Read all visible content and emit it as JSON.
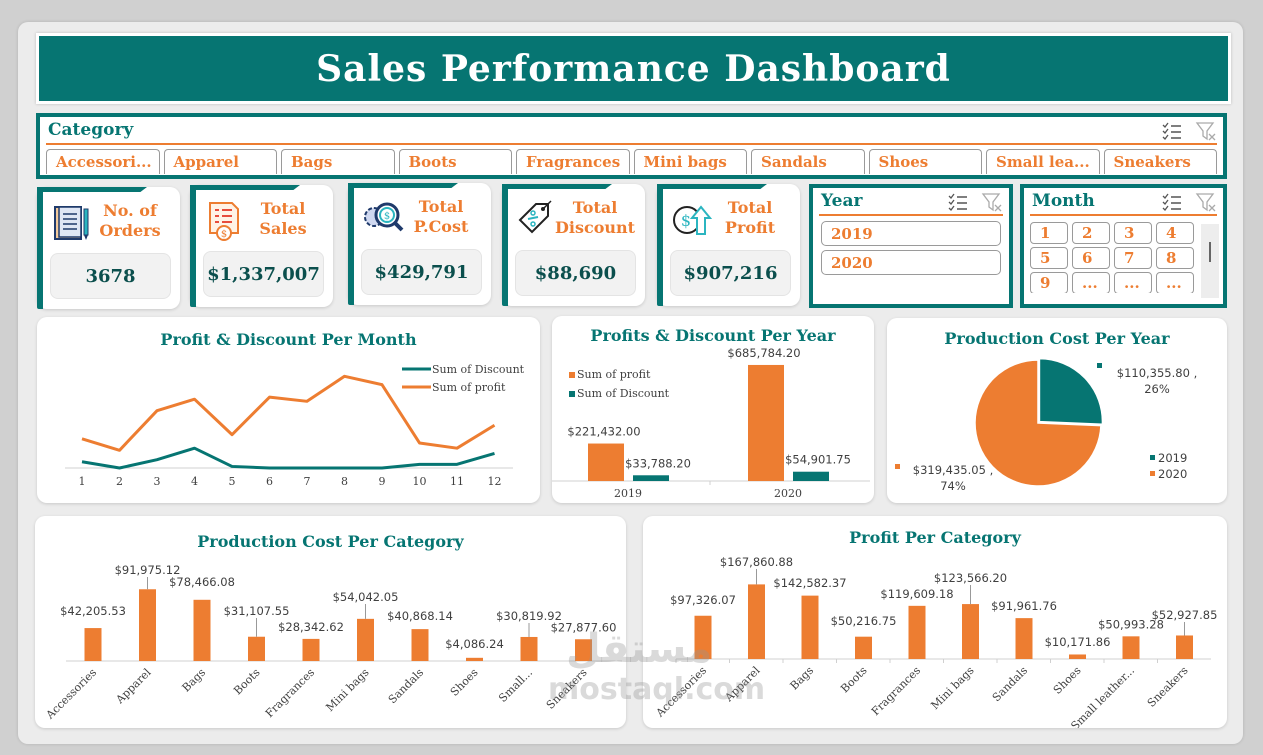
{
  "header": {
    "title": "Sales Performance Dashboard"
  },
  "colors": {
    "teal": "#067572",
    "orange": "#ed7d31",
    "dark_value": "#0b4f4d"
  },
  "category_slicer": {
    "title": "Category",
    "icons": [
      "multi-select-icon",
      "clear-filter-icon"
    ],
    "items": [
      "Accessori...",
      "Apparel",
      "Bags",
      "Boots",
      "Fragrances",
      "Mini bags",
      "Sandals",
      "Shoes",
      "Small lea...",
      "Sneakers"
    ]
  },
  "kpis": [
    {
      "icon": "notepad-icon",
      "label_line1": "No. of",
      "label_line2": "Orders",
      "value": "3678"
    },
    {
      "icon": "invoice-icon",
      "label_line1": "Total",
      "label_line2": "Sales",
      "value": "$1,337,007"
    },
    {
      "icon": "gear-magnifier-icon",
      "label_line1": "Total",
      "label_line2": "P.Cost",
      "value": "$429,791"
    },
    {
      "icon": "discount-tag-icon",
      "label_line1": "Total",
      "label_line2": "Discount",
      "value": "$88,690"
    },
    {
      "icon": "profit-arrow-icon",
      "label_line1": "Total",
      "label_line2": "Profit",
      "value": "$907,216"
    }
  ],
  "year_slicer": {
    "title": "Year",
    "items": [
      "2019",
      "2020"
    ]
  },
  "month_slicer": {
    "title": "Month",
    "items": [
      "1",
      "2",
      "3",
      "4",
      "5",
      "6",
      "7",
      "8",
      "9",
      "...",
      "...",
      "..."
    ]
  },
  "watermark": {
    "arabic": "مستقل",
    "latin": "mostaql.com"
  },
  "chart_data": [
    {
      "id": "profit_discount_month",
      "type": "line",
      "title": "Profit & Discount Per Month",
      "x": [
        "1",
        "2",
        "3",
        "4",
        "5",
        "6",
        "7",
        "8",
        "9",
        "10",
        "11",
        "12"
      ],
      "series": [
        {
          "name": "Sum of Discount",
          "color": "#067572",
          "values": [
            6000,
            0,
            8000,
            19000,
            1500,
            0,
            0,
            0,
            0,
            3500,
            3500,
            14000
          ]
        },
        {
          "name": "Sum of profit",
          "color": "#ed7d31",
          "values": [
            28000,
            17000,
            55000,
            66000,
            32000,
            68000,
            64000,
            88000,
            80000,
            24000,
            19000,
            41000
          ]
        }
      ],
      "ylim": [
        0,
        95000
      ],
      "legend": "top-right",
      "grid": false
    },
    {
      "id": "profit_discount_year",
      "type": "bar",
      "title": "Profits & Discount Per Year",
      "categories": [
        "2019",
        "2020"
      ],
      "series": [
        {
          "name": "Sum of profit",
          "color": "#ed7d31",
          "values": [
            221432.0
          ],
          "labels": [
            "$221,432.00",
            "$685,784.20"
          ]
        },
        {
          "name": "Sum of Discount",
          "color": "#067572",
          "values": [
            33788.2
          ],
          "labels": [
            "$33,788.20",
            "$54,901.75"
          ]
        }
      ],
      "values_2020": {
        "Sum of profit": 685784.2,
        "Sum of Discount": 54901.75
      },
      "ylim": [
        0,
        700000
      ],
      "legend": "top-left"
    },
    {
      "id": "production_cost_year",
      "type": "pie",
      "title": "Production Cost Per Year",
      "categories": [
        "2019",
        "2020"
      ],
      "values": [
        110355.8,
        319435.05
      ],
      "colors": [
        "#067572",
        "#ed7d31"
      ],
      "labels": [
        "$110,355.80 , 26%",
        "$319,435.05 , 74%"
      ],
      "percents": [
        "26%",
        "74%"
      ],
      "legend": "bottom-right"
    },
    {
      "id": "production_cost_category",
      "type": "bar",
      "title": "Production Cost Per Category",
      "categories": [
        "Accessories",
        "Apparel",
        "Bags",
        "Boots",
        "Fragrances",
        "Mini bags",
        "Sandals",
        "Shoes",
        "Small...",
        "Sneakers"
      ],
      "values": [
        42205.53,
        91975.12,
        78466.08,
        31107.55,
        28342.62,
        54042.05,
        40868.14,
        4086.24,
        30819.92,
        27877.6
      ],
      "labels": [
        "$42,205.53",
        "$91,975.12",
        "$78,466.08",
        "$31,107.55",
        "$28,342.62",
        "$54,042.05",
        "$40,868.14",
        "$4,086.24",
        "$30,819.92",
        "$27,877.60"
      ],
      "color": "#ed7d31",
      "ylim": [
        0,
        100000
      ]
    },
    {
      "id": "profit_category",
      "type": "bar",
      "title": "Profit Per Category",
      "categories": [
        "Accessories",
        "Apparel",
        "Bags",
        "Boots",
        "Fragrances",
        "Mini bags",
        "Sandals",
        "Shoes",
        "Small leather...",
        "Sneakers"
      ],
      "values": [
        97326.07,
        167860.88,
        142582.37,
        50216.75,
        119609.18,
        123566.2,
        91961.76,
        10171.86,
        50993.28,
        52927.85
      ],
      "labels": [
        "$97,326.07",
        "$167,860.88",
        "$142,582.37",
        "$50,216.75",
        "$119,609.18",
        "$123,566.20",
        "$91,961.76",
        "$10,171.86",
        "$50,993.28",
        "$52,927.85"
      ],
      "color": "#ed7d31",
      "ylim": [
        0,
        180000
      ]
    }
  ]
}
